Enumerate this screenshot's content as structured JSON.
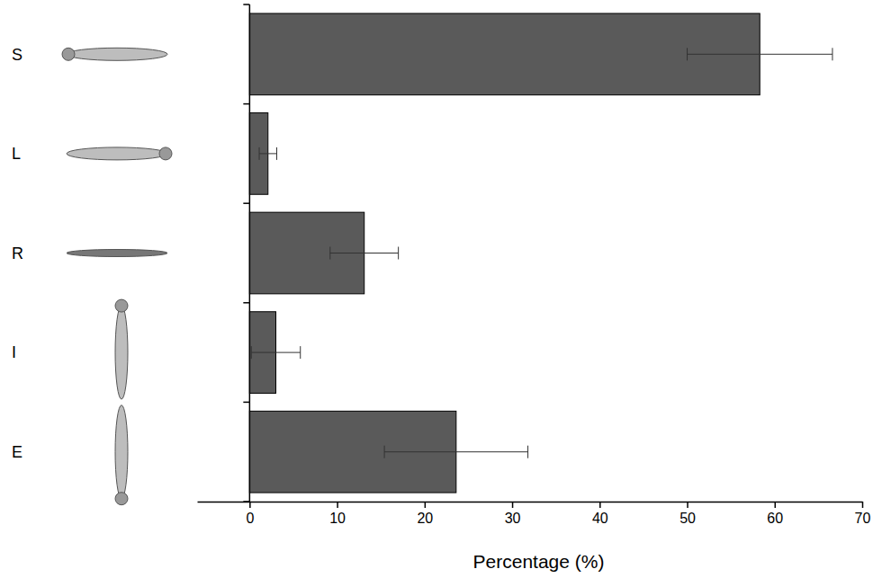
{
  "chart_data": {
    "type": "bar",
    "orientation": "horizontal",
    "categories": [
      "S",
      "L",
      "R",
      "I",
      "E"
    ],
    "values": [
      58.3,
      2.1,
      13.1,
      3.0,
      23.6
    ],
    "errors": [
      8.3,
      1.0,
      3.9,
      2.8,
      8.2
    ],
    "color": "#5a5a5a",
    "x_label": "Percentage (%)",
    "xlim": [
      -6,
      70
    ],
    "xticks": [
      0,
      10,
      20,
      30,
      40,
      50,
      60,
      70
    ]
  }
}
